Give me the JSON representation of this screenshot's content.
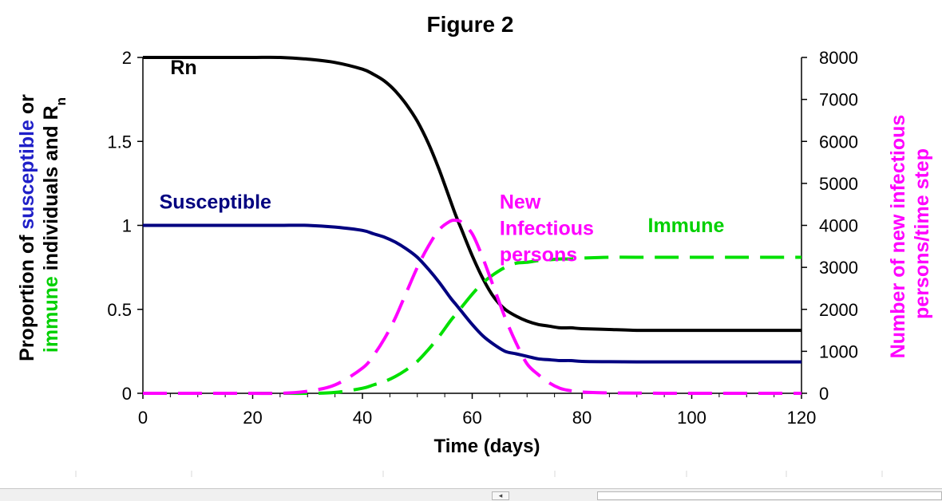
{
  "chart_data": {
    "type": "line",
    "title": "Figure 2",
    "xlabel": "Time (days)",
    "xlim": [
      0,
      120
    ],
    "x_ticks": [
      0,
      20,
      40,
      60,
      80,
      100,
      120
    ],
    "y_left": {
      "label_parts": [
        {
          "text": "Proportion of ",
          "color": "#000000",
          "line": 1
        },
        {
          "text": "susceptible",
          "color": "#1f1fc8",
          "line": 1
        },
        {
          "text": " or",
          "color": "#000000",
          "line": 1
        },
        {
          "text": "immune",
          "color": "#00d000",
          "line": 2
        },
        {
          "text": " individuals and R",
          "color": "#000000",
          "line": 2
        },
        {
          "text": "n",
          "color": "#000000",
          "line": 2,
          "subscript": true
        }
      ],
      "lim": [
        0,
        2
      ],
      "ticks": [
        "0",
        "0.5",
        "1",
        "1.5",
        "2"
      ],
      "tick_values": [
        0,
        0.5,
        1,
        1.5,
        2
      ]
    },
    "y_right": {
      "label_lines": [
        "Number of new infectious",
        "persons/time step"
      ],
      "label_color": "#ff00ff",
      "lim": [
        0,
        8000
      ],
      "ticks": [
        "0",
        "1000",
        "2000",
        "3000",
        "4000",
        "5000",
        "6000",
        "7000",
        "8000"
      ],
      "tick_values": [
        0,
        1000,
        2000,
        3000,
        4000,
        5000,
        6000,
        7000,
        8000
      ]
    },
    "x": [
      0,
      5,
      10,
      15,
      20,
      25,
      30,
      35,
      40,
      42,
      44,
      46,
      48,
      50,
      52,
      54,
      56,
      57,
      58,
      60,
      62,
      64,
      66,
      68,
      70,
      72,
      74,
      76,
      78,
      80,
      85,
      90,
      95,
      100,
      110,
      120
    ],
    "series": [
      {
        "name": "Rn",
        "axis": "left",
        "color": "#000000",
        "dash": "solid",
        "values": [
          2.0,
          2.0,
          2.0,
          2.0,
          2.0,
          2.0,
          1.99,
          1.97,
          1.93,
          1.9,
          1.86,
          1.8,
          1.72,
          1.62,
          1.49,
          1.33,
          1.15,
          1.06,
          0.98,
          0.82,
          0.68,
          0.57,
          0.5,
          0.46,
          0.43,
          0.41,
          0.4,
          0.39,
          0.39,
          0.385,
          0.38,
          0.375,
          0.375,
          0.375,
          0.375,
          0.375
        ]
      },
      {
        "name": "Susceptible",
        "axis": "left",
        "color": "#000080",
        "dash": "solid",
        "values": [
          1.0,
          1.0,
          1.0,
          1.0,
          1.0,
          1.0,
          1.0,
          0.99,
          0.97,
          0.95,
          0.93,
          0.9,
          0.86,
          0.81,
          0.74,
          0.66,
          0.57,
          0.53,
          0.49,
          0.41,
          0.34,
          0.29,
          0.25,
          0.235,
          0.22,
          0.205,
          0.2,
          0.195,
          0.195,
          0.19,
          0.188,
          0.187,
          0.187,
          0.187,
          0.187,
          0.187
        ]
      },
      {
        "name": "Immune",
        "axis": "left",
        "color": "#00e000",
        "dash": "dashed",
        "values": [
          0,
          0,
          0,
          0,
          0,
          0,
          0,
          0.005,
          0.03,
          0.05,
          0.07,
          0.1,
          0.14,
          0.19,
          0.26,
          0.34,
          0.43,
          0.47,
          0.51,
          0.59,
          0.66,
          0.71,
          0.75,
          0.775,
          0.78,
          0.79,
          0.795,
          0.8,
          0.8,
          0.805,
          0.81,
          0.81,
          0.81,
          0.81,
          0.81,
          0.81
        ]
      },
      {
        "name": "New Infectious persons",
        "axis": "right",
        "color": "#ff00ff",
        "dash": "dashed",
        "values": [
          0,
          0,
          0,
          0,
          0,
          0,
          50,
          200,
          600,
          900,
          1300,
          1800,
          2400,
          3000,
          3500,
          3900,
          4100,
          4120,
          4080,
          3800,
          3200,
          2500,
          1800,
          1200,
          700,
          450,
          250,
          120,
          60,
          30,
          10,
          5,
          0,
          0,
          0,
          0
        ]
      }
    ],
    "annotations": [
      {
        "text_lines": [
          "Rn"
        ],
        "color": "#000000",
        "at": [
          5,
          1.9
        ]
      },
      {
        "text_lines": [
          "Susceptible"
        ],
        "color": "#000080",
        "at": [
          3,
          1.1
        ]
      },
      {
        "text_lines": [
          "New",
          "Infectious",
          "persons"
        ],
        "color": "#ff00ff",
        "at": [
          65,
          1.1
        ]
      },
      {
        "text_lines": [
          "Immune"
        ],
        "color": "#00d000",
        "at": [
          92,
          0.96
        ]
      }
    ]
  }
}
